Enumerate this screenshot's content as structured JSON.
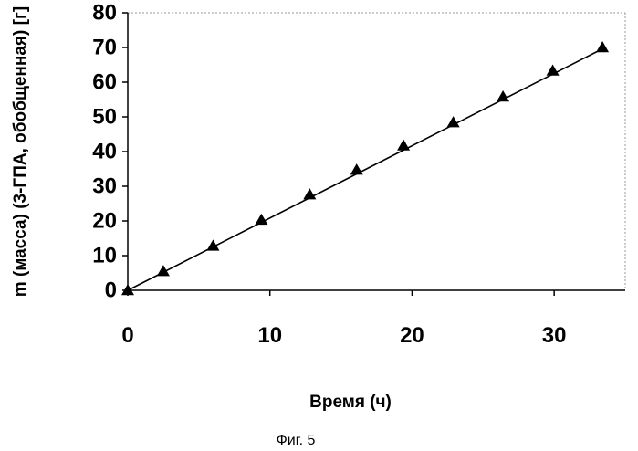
{
  "chart_data": {
    "type": "scatter",
    "title": "",
    "xlabel": "Время (ч)",
    "ylabel": "m (масса) (3-ГПА, обобщенная) [г]",
    "caption": "Фиг. 5",
    "xlim": [
      0,
      35
    ],
    "ylim": [
      0,
      80
    ],
    "xticks": [
      0,
      10,
      20,
      30
    ],
    "yticks": [
      0,
      10,
      20,
      30,
      40,
      50,
      60,
      70,
      80
    ],
    "grid": false,
    "marker": "triangle",
    "marker_color": "#000000",
    "trendline": true,
    "series": [
      {
        "x": [
          0,
          2.5,
          6,
          9.4,
          12.8,
          16.1,
          19.4,
          22.9,
          26.4,
          29.9,
          33.4
        ],
        "y": [
          0,
          5.5,
          12.8,
          20.3,
          27.6,
          34.7,
          41.7,
          48.4,
          55.8,
          63.3,
          70.0
        ]
      }
    ],
    "trendline_points": {
      "x": [
        0,
        33.4
      ],
      "y": [
        0,
        69.6
      ]
    }
  }
}
